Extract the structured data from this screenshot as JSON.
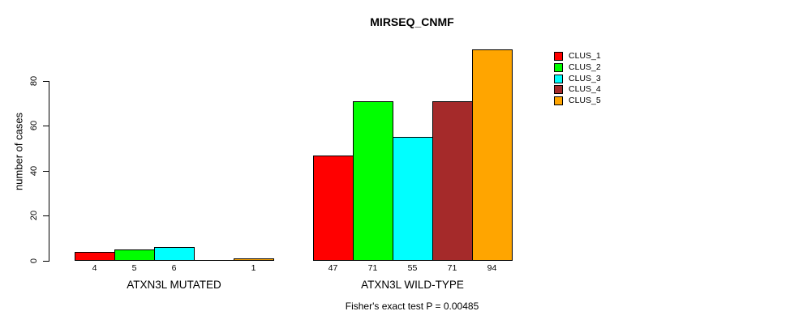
{
  "chart_data": {
    "type": "bar",
    "title": "MIRSEQ_CNMF",
    "ylabel": "number of cases",
    "annotation": "Fisher's exact test P = 0.00485",
    "ylim": [
      0,
      80
    ],
    "yticks": [
      0,
      20,
      40,
      60,
      80
    ],
    "grid": false,
    "legend_position": "top-right",
    "categories": [
      "ATXN3L MUTATED",
      "ATXN3L WILD-TYPE"
    ],
    "series": [
      {
        "name": "CLUS_1",
        "color": "#ff0000",
        "values": [
          4,
          47
        ]
      },
      {
        "name": "CLUS_2",
        "color": "#00ff00",
        "values": [
          5,
          71
        ]
      },
      {
        "name": "CLUS_3",
        "color": "#00ffff",
        "values": [
          6,
          55
        ]
      },
      {
        "name": "CLUS_4",
        "color": "#a52a2a",
        "values": [
          0,
          71
        ]
      },
      {
        "name": "CLUS_5",
        "color": "#ffa500",
        "values": [
          1,
          94
        ]
      }
    ],
    "bar_value_labels_shown": true,
    "zero_value_labels_hidden": true
  }
}
